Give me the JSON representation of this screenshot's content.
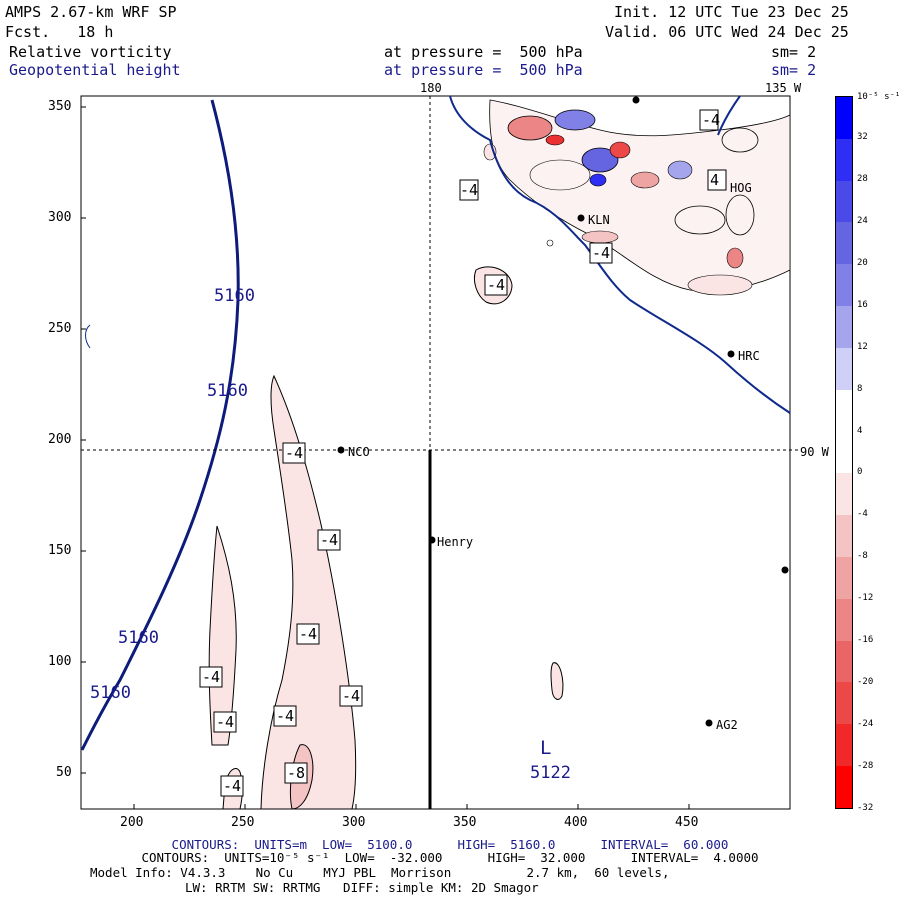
{
  "header": {
    "model": "AMPS 2.67-km WRF SP",
    "forecast": "Fcst.   18 h",
    "init": "Init. 12 UTC Tue 23 Dec 25",
    "valid": "Valid. 06 UTC Wed 24 Dec 25",
    "field1": {
      "name": "Relative vorticity",
      "pressure": "at pressure =  500 hPa",
      "sm": "sm= 2"
    },
    "field2": {
      "name": "Geopotential height",
      "pressure": "at pressure =  500 hPa",
      "sm": "sm= 2"
    }
  },
  "map": {
    "meridian_labels": {
      "top_center": "180",
      "top_right": "135 W",
      "right_mid": "90 W"
    },
    "x_ticks": [
      "200",
      "250",
      "300",
      "350",
      "400",
      "450"
    ],
    "y_ticks": [
      "350",
      "300",
      "250",
      "200",
      "150",
      "100",
      "50"
    ],
    "stations": [
      {
        "name": "NCO"
      },
      {
        "name": "Henry"
      },
      {
        "name": "AG2"
      },
      {
        "name": "HRC"
      },
      {
        "name": "KLN"
      },
      {
        "name": "HOG"
      }
    ],
    "height_labels": [
      "5160",
      "5160",
      "5160",
      "5160"
    ],
    "low": {
      "symbol": "L",
      "value": "5122"
    },
    "vort_labels": [
      "-4",
      "-4",
      "-4",
      "-4",
      "-4",
      "-4",
      "-4",
      "-4",
      "-8",
      "-4",
      "-4",
      "-4",
      "-4",
      "4"
    ]
  },
  "colorbar": {
    "unit": "10⁻⁵ s⁻¹",
    "ticks": [
      "32",
      "28",
      "24",
      "20",
      "16",
      "12",
      "8",
      "4",
      "0",
      "-4",
      "-8",
      "-12",
      "-16",
      "-20",
      "-24",
      "-28",
      "-32"
    ],
    "colors": [
      "#0000ff",
      "#2e2ef5",
      "#4a4ae8",
      "#6565e2",
      "#8080e6",
      "#a5a5ee",
      "#cfcff7",
      "#ffffff",
      "#ffffff",
      "#fbe4e4",
      "#f4c4c4",
      "#efa4a4",
      "#ec8686",
      "#ea6666",
      "#ec4848",
      "#f02828",
      "#ff0000"
    ]
  },
  "footer": {
    "line1": "CONTOURS:  UNITS=m  LOW=  5100.0      HIGH=  5160.0      INTERVAL=  60.000",
    "line2": "CONTOURS:  UNITS=10⁻⁵ s⁻¹  LOW=  -32.000      HIGH=  32.000      INTERVAL=  4.0000",
    "line3": "Model Info: V4.3.3    No Cu    MYJ PBL  Morrison          2.7 km,  60 levels,",
    "line4": "LW: RRTM SW: RRTMG   DIFF: simple KM: 2D Smagor"
  }
}
